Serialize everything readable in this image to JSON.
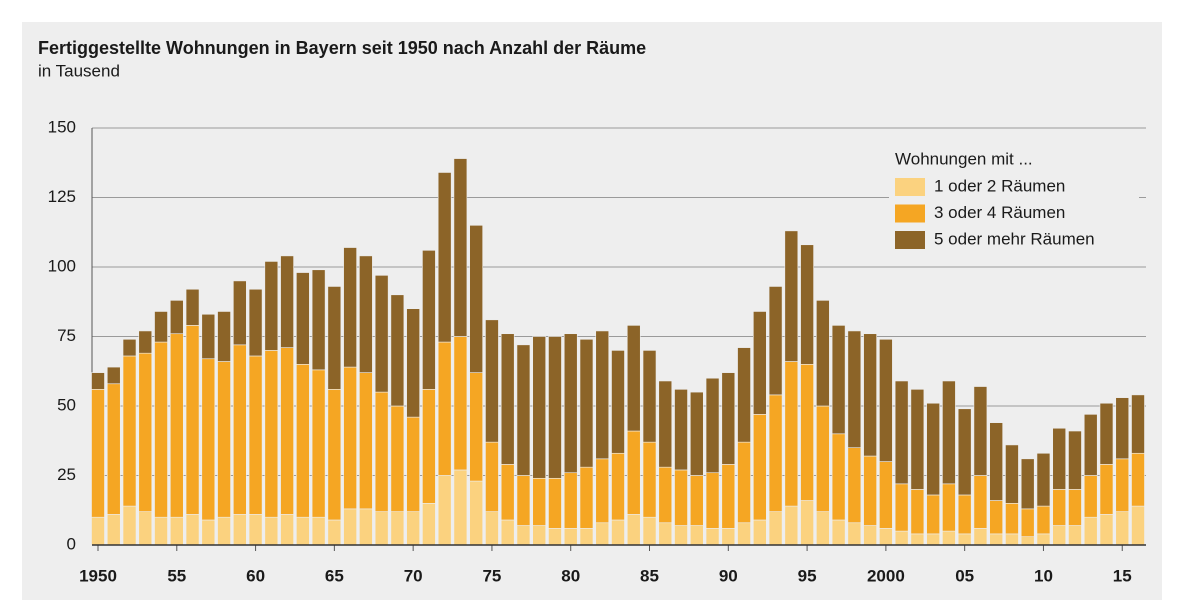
{
  "chart_data": {
    "type": "bar",
    "stacked": true,
    "title": "Fertiggestellte Wohnungen in Bayern seit 1950 nach Anzahl der Räume",
    "subtitle": "in Tausend",
    "categories": [
      "1950",
      null,
      null,
      null,
      null,
      "55",
      null,
      null,
      null,
      null,
      "60",
      null,
      null,
      null,
      null,
      "65",
      null,
      null,
      null,
      null,
      "70",
      null,
      null,
      null,
      null,
      "75",
      null,
      null,
      null,
      null,
      "80",
      null,
      null,
      null,
      null,
      "85",
      null,
      null,
      null,
      null,
      "90",
      null,
      null,
      null,
      null,
      "95",
      null,
      null,
      null,
      null,
      "2000",
      null,
      null,
      null,
      null,
      "05",
      null,
      null,
      null,
      null,
      "10",
      null,
      null,
      null,
      null,
      "15",
      null
    ],
    "legend_title": "Wohnungen mit ...",
    "series": [
      {
        "name": "1 oder 2 Räumen",
        "color": "#fbd27f",
        "values": [
          10,
          11,
          14,
          12,
          10,
          10,
          11,
          9,
          10,
          11,
          11,
          10,
          11,
          10,
          10,
          9,
          13,
          13,
          12,
          12,
          12,
          15,
          25,
          27,
          23,
          12,
          9,
          7,
          7,
          6,
          6,
          6,
          8,
          9,
          11,
          10,
          8,
          7,
          7,
          6,
          6,
          8,
          9,
          12,
          14,
          16,
          12,
          9,
          8,
          7,
          6,
          5,
          4,
          4,
          5,
          4,
          6,
          4,
          4,
          3,
          4,
          7,
          7,
          10,
          11,
          12,
          14
        ]
      },
      {
        "name": "3 oder 4 Räumen",
        "color": "#f5a623",
        "values": [
          46,
          47,
          54,
          57,
          63,
          66,
          68,
          58,
          56,
          61,
          57,
          60,
          60,
          55,
          53,
          47,
          51,
          49,
          43,
          38,
          34,
          41,
          48,
          48,
          39,
          25,
          20,
          18,
          17,
          18,
          20,
          22,
          23,
          24,
          30,
          27,
          20,
          20,
          18,
          20,
          23,
          29,
          38,
          42,
          52,
          49,
          38,
          31,
          27,
          25,
          24,
          17,
          16,
          14,
          17,
          14,
          19,
          12,
          11,
          10,
          10,
          13,
          13,
          15,
          18,
          19,
          19
        ]
      },
      {
        "name": "5 oder mehr Räumen",
        "color": "#8c6428",
        "values": [
          6,
          6,
          6,
          8,
          11,
          12,
          13,
          16,
          18,
          23,
          24,
          32,
          33,
          33,
          36,
          37,
          43,
          42,
          42,
          40,
          39,
          50,
          61,
          64,
          53,
          44,
          47,
          47,
          51,
          51,
          50,
          46,
          46,
          37,
          38,
          33,
          31,
          29,
          30,
          34,
          33,
          34,
          37,
          39,
          47,
          43,
          38,
          39,
          42,
          44,
          44,
          37,
          36,
          33,
          37,
          31,
          32,
          28,
          21,
          18,
          19,
          22,
          21,
          22,
          22,
          22,
          21
        ]
      }
    ],
    "ylim": [
      0,
      150
    ],
    "yticks": [
      0,
      25,
      50,
      75,
      100,
      125,
      150
    ],
    "grid": true,
    "legend": "upper right"
  }
}
